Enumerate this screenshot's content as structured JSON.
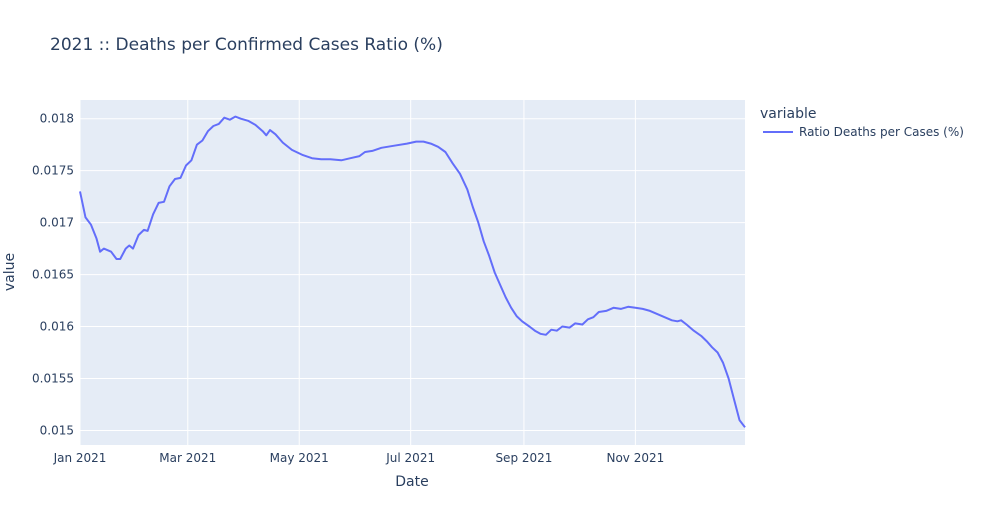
{
  "chart_data": {
    "type": "line",
    "title": "2021 :: Deaths per Confirmed Cases Ratio (%)",
    "xlabel": "Date",
    "ylabel": "value",
    "xlim": [
      "2021-01-01",
      "2021-12-31"
    ],
    "ylim": [
      0.01486,
      0.01818
    ],
    "x_ticks": [
      {
        "date": "2021-01-01",
        "label": "Jan 2021"
      },
      {
        "date": "2021-03-01",
        "label": "Mar 2021"
      },
      {
        "date": "2021-05-01",
        "label": "May 2021"
      },
      {
        "date": "2021-07-01",
        "label": "Jul 2021"
      },
      {
        "date": "2021-09-01",
        "label": "Sep 2021"
      },
      {
        "date": "2021-11-01",
        "label": "Nov 2021"
      }
    ],
    "y_ticks": [
      {
        "value": 0.015,
        "label": "0.015"
      },
      {
        "value": 0.0155,
        "label": "0.0155"
      },
      {
        "value": 0.016,
        "label": "0.016"
      },
      {
        "value": 0.0165,
        "label": "0.0165"
      },
      {
        "value": 0.017,
        "label": "0.017"
      },
      {
        "value": 0.0175,
        "label": "0.0175"
      },
      {
        "value": 0.018,
        "label": "0.018"
      }
    ],
    "grid": true,
    "legend": {
      "title": "variable",
      "position": "right"
    },
    "colors": {
      "line": "#636efa",
      "plot_bg": "#e5ecf6",
      "grid": "#ffffff"
    },
    "series": [
      {
        "name": "Ratio Deaths per Cases (%)",
        "points": [
          [
            "2021-01-01",
            0.0173
          ],
          [
            "2021-01-04",
            0.01705
          ],
          [
            "2021-01-07",
            0.01698
          ],
          [
            "2021-01-10",
            0.01685
          ],
          [
            "2021-01-12",
            0.01672
          ],
          [
            "2021-01-14",
            0.01675
          ],
          [
            "2021-01-18",
            0.01672
          ],
          [
            "2021-01-21",
            0.01665
          ],
          [
            "2021-01-23",
            0.01665
          ],
          [
            "2021-01-26",
            0.01675
          ],
          [
            "2021-01-28",
            0.01678
          ],
          [
            "2021-01-30",
            0.01675
          ],
          [
            "2021-02-02",
            0.01688
          ],
          [
            "2021-02-05",
            0.01693
          ],
          [
            "2021-02-07",
            0.01692
          ],
          [
            "2021-02-10",
            0.01708
          ],
          [
            "2021-02-13",
            0.01719
          ],
          [
            "2021-02-16",
            0.0172
          ],
          [
            "2021-02-19",
            0.01735
          ],
          [
            "2021-02-22",
            0.01742
          ],
          [
            "2021-02-25",
            0.01743
          ],
          [
            "2021-02-28",
            0.01755
          ],
          [
            "2021-03-03",
            0.0176
          ],
          [
            "2021-03-06",
            0.01775
          ],
          [
            "2021-03-09",
            0.01779
          ],
          [
            "2021-03-12",
            0.01788
          ],
          [
            "2021-03-15",
            0.01793
          ],
          [
            "2021-03-18",
            0.01795
          ],
          [
            "2021-03-21",
            0.01801
          ],
          [
            "2021-03-24",
            0.01799
          ],
          [
            "2021-03-27",
            0.01802
          ],
          [
            "2021-03-30",
            0.018
          ],
          [
            "2021-04-03",
            0.01798
          ],
          [
            "2021-04-07",
            0.01794
          ],
          [
            "2021-04-11",
            0.01788
          ],
          [
            "2021-04-13",
            0.01784
          ],
          [
            "2021-04-15",
            0.01789
          ],
          [
            "2021-04-18",
            0.01785
          ],
          [
            "2021-04-22",
            0.01777
          ],
          [
            "2021-04-27",
            0.0177
          ],
          [
            "2021-05-03",
            0.01765
          ],
          [
            "2021-05-08",
            0.01762
          ],
          [
            "2021-05-13",
            0.01761
          ],
          [
            "2021-05-18",
            0.01761
          ],
          [
            "2021-05-24",
            0.0176
          ],
          [
            "2021-05-29",
            0.01762
          ],
          [
            "2021-06-03",
            0.01764
          ],
          [
            "2021-06-06",
            0.01768
          ],
          [
            "2021-06-10",
            0.01769
          ],
          [
            "2021-06-15",
            0.01772
          ],
          [
            "2021-06-22",
            0.01774
          ],
          [
            "2021-06-29",
            0.01776
          ],
          [
            "2021-07-04",
            0.01778
          ],
          [
            "2021-07-08",
            0.01778
          ],
          [
            "2021-07-12",
            0.01776
          ],
          [
            "2021-07-16",
            0.01773
          ],
          [
            "2021-07-20",
            0.01768
          ],
          [
            "2021-07-24",
            0.01757
          ],
          [
            "2021-07-28",
            0.01747
          ],
          [
            "2021-08-01",
            0.01732
          ],
          [
            "2021-08-04",
            0.01715
          ],
          [
            "2021-08-07",
            0.017
          ],
          [
            "2021-08-10",
            0.01682
          ],
          [
            "2021-08-13",
            0.01668
          ],
          [
            "2021-08-16",
            0.01652
          ],
          [
            "2021-08-19",
            0.0164
          ],
          [
            "2021-08-22",
            0.01628
          ],
          [
            "2021-08-25",
            0.01618
          ],
          [
            "2021-08-28",
            0.0161
          ],
          [
            "2021-08-31",
            0.01605
          ],
          [
            "2021-09-04",
            0.016
          ],
          [
            "2021-09-07",
            0.01596
          ],
          [
            "2021-09-10",
            0.01593
          ],
          [
            "2021-09-13",
            0.01592
          ],
          [
            "2021-09-16",
            0.01597
          ],
          [
            "2021-09-19",
            0.01596
          ],
          [
            "2021-09-22",
            0.016
          ],
          [
            "2021-09-26",
            0.01599
          ],
          [
            "2021-09-29",
            0.01603
          ],
          [
            "2021-10-03",
            0.01602
          ],
          [
            "2021-10-06",
            0.01607
          ],
          [
            "2021-10-09",
            0.01609
          ],
          [
            "2021-10-12",
            0.01614
          ],
          [
            "2021-10-16",
            0.01615
          ],
          [
            "2021-10-20",
            0.01618
          ],
          [
            "2021-10-24",
            0.01617
          ],
          [
            "2021-10-28",
            0.01619
          ],
          [
            "2021-11-01",
            0.01618
          ],
          [
            "2021-11-05",
            0.01617
          ],
          [
            "2021-11-09",
            0.01615
          ],
          [
            "2021-11-13",
            0.01612
          ],
          [
            "2021-11-17",
            0.01609
          ],
          [
            "2021-11-21",
            0.01606
          ],
          [
            "2021-11-24",
            0.01605
          ],
          [
            "2021-11-26",
            0.01606
          ],
          [
            "2021-11-29",
            0.01602
          ],
          [
            "2021-12-03",
            0.01596
          ],
          [
            "2021-12-07",
            0.01591
          ],
          [
            "2021-12-10",
            0.01586
          ],
          [
            "2021-12-13",
            0.0158
          ],
          [
            "2021-12-16",
            0.01575
          ],
          [
            "2021-12-19",
            0.01565
          ],
          [
            "2021-12-22",
            0.0155
          ],
          [
            "2021-12-25",
            0.0153
          ],
          [
            "2021-12-28",
            0.0151
          ],
          [
            "2021-12-31",
            0.01503
          ]
        ]
      }
    ]
  }
}
